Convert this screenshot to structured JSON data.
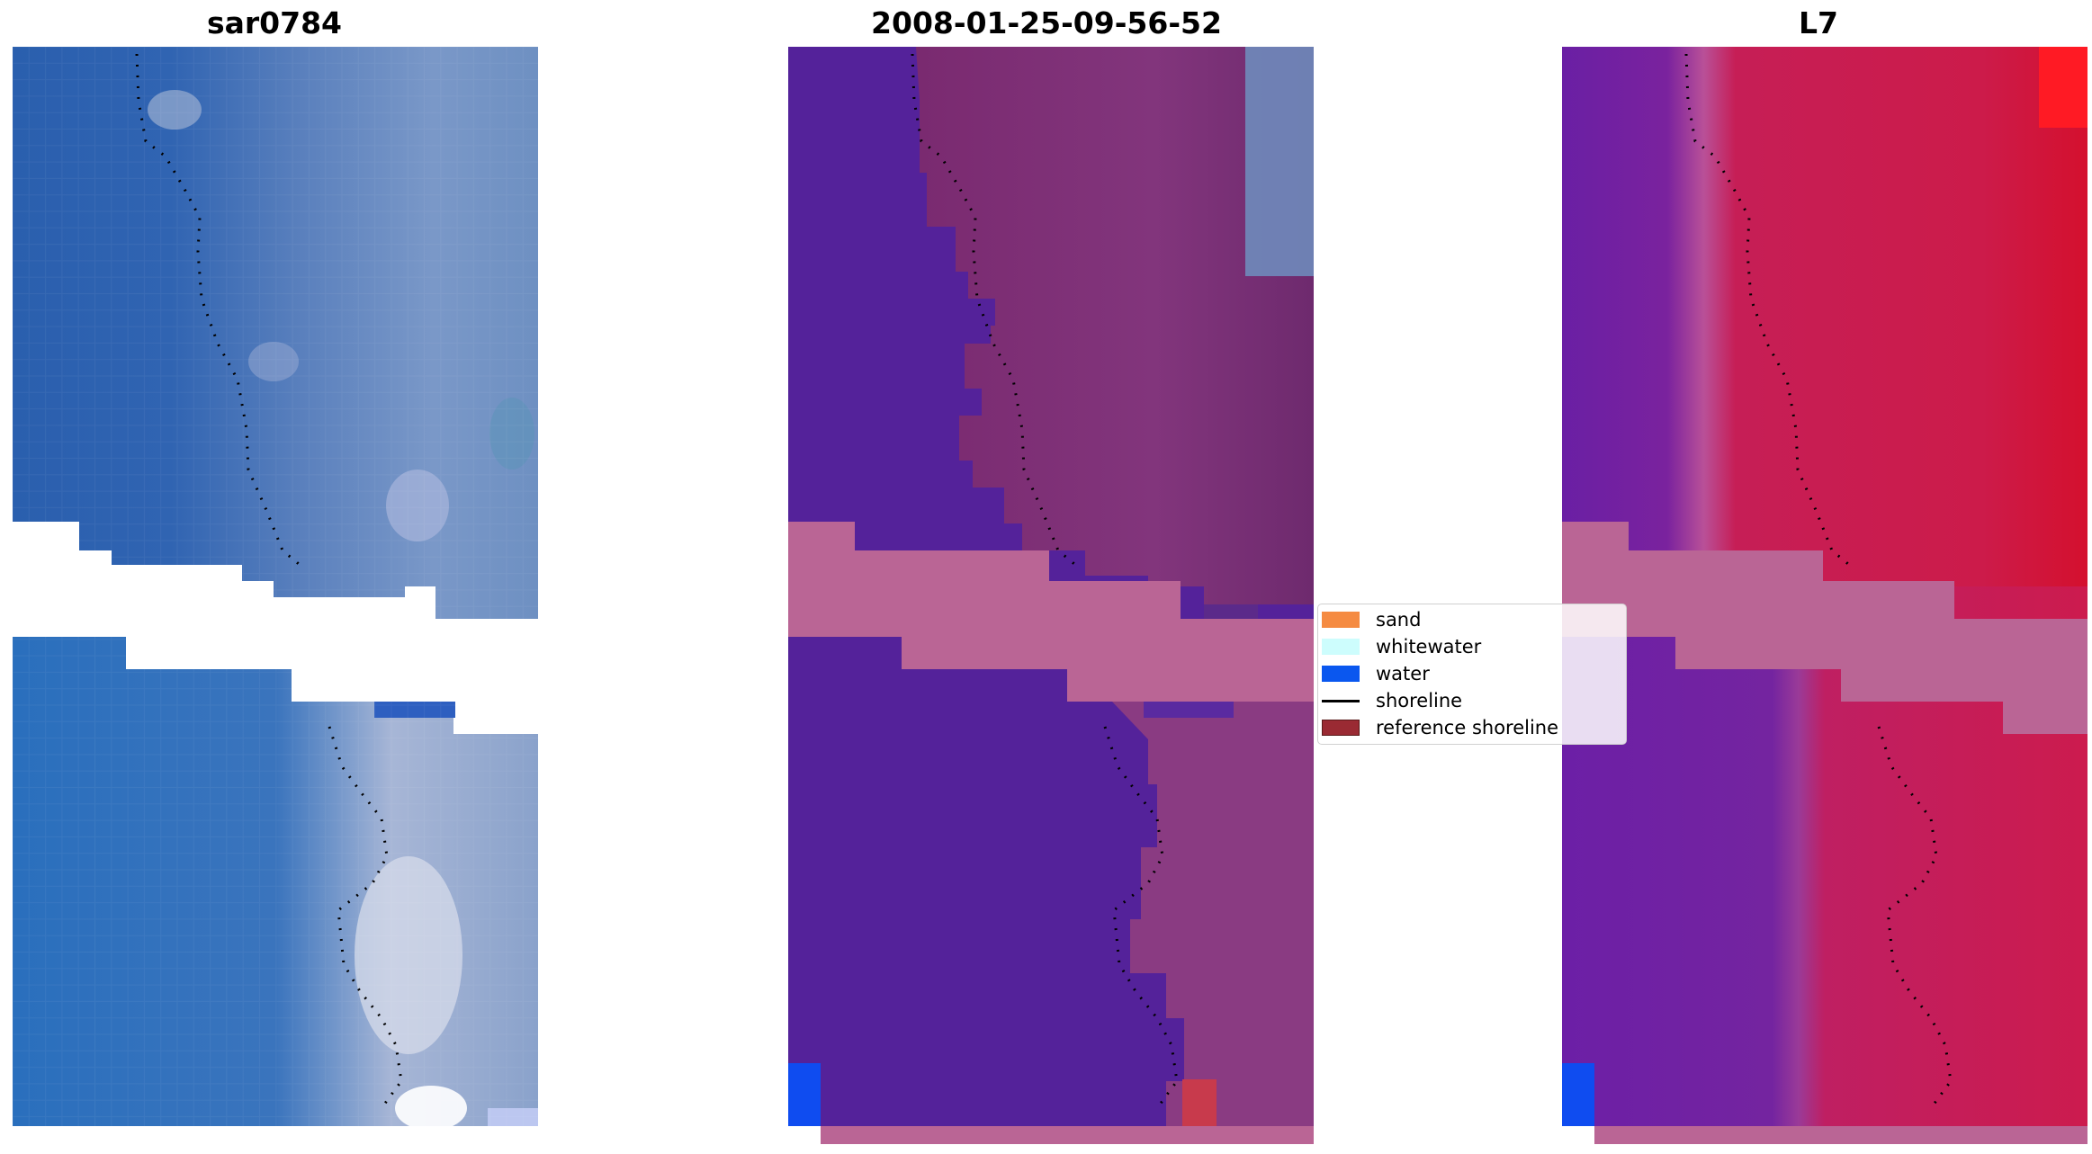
{
  "figure": {
    "titles": {
      "left": "sar0784",
      "center": "2008-01-25-09-56-52",
      "right": "L7"
    },
    "legend": {
      "items": [
        {
          "label": "sand",
          "color": "#f58b42",
          "type": "patch"
        },
        {
          "label": "whitewater",
          "color": "#cdfdfd",
          "type": "patch"
        },
        {
          "label": "water",
          "color": "#0a57ef",
          "type": "patch"
        },
        {
          "label": "shoreline",
          "color": "#000000",
          "type": "line"
        },
        {
          "label": "reference shoreline",
          "color": "#9a2a33",
          "type": "patch"
        }
      ]
    },
    "colors": {
      "rgb_water": "#2f66b3",
      "rgb_land": "#7f9fcc",
      "class_water": "#54229a",
      "class_land": "#7b2a78",
      "nodata_band": "#ba6595",
      "ndwi_water": "#6d1fa4",
      "ndwi_land": "#cc1b4e"
    }
  }
}
